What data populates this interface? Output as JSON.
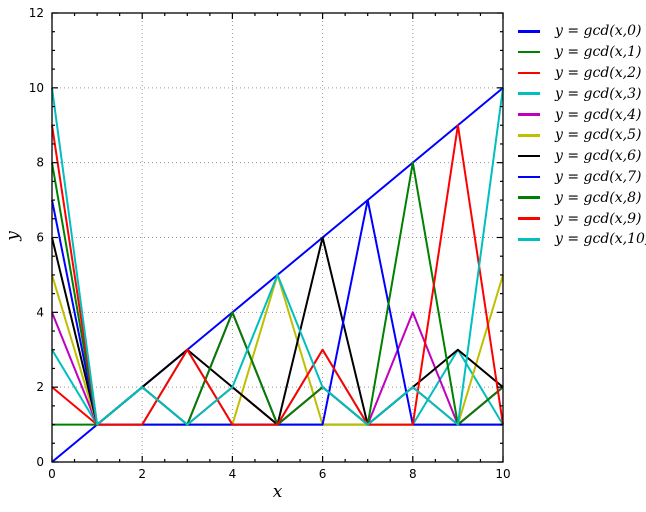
{
  "chart_data": {
    "type": "line",
    "title": "",
    "xlabel": "x",
    "ylabel": "y",
    "xlim": [
      0,
      10
    ],
    "ylim": [
      0,
      12
    ],
    "xticks": [
      0,
      2,
      4,
      6,
      8,
      10
    ],
    "yticks": [
      0,
      2,
      4,
      6,
      8,
      10,
      12
    ],
    "minor_tick_step": 0.5,
    "grid": true,
    "grid_style": "dotted",
    "legend_position": "right",
    "legend_frame": false,
    "colors": {
      "background": "#ffffff",
      "axes": "#000000",
      "grid": "#999999"
    },
    "x": [
      0,
      1,
      2,
      3,
      4,
      5,
      6,
      7,
      8,
      9,
      10
    ],
    "series": [
      {
        "label": "y = gcd(x,0)",
        "color": "#0000ff",
        "values": [
          0,
          1,
          2,
          3,
          4,
          5,
          6,
          7,
          8,
          9,
          10
        ]
      },
      {
        "label": "y = gcd(x,1)",
        "color": "#008000",
        "values": [
          1,
          1,
          1,
          1,
          1,
          1,
          1,
          1,
          1,
          1,
          1
        ]
      },
      {
        "label": "y = gcd(x,2)",
        "color": "#ff0000",
        "values": [
          2,
          1,
          2,
          1,
          2,
          1,
          2,
          1,
          2,
          1,
          2
        ]
      },
      {
        "label": "y = gcd(x,3)",
        "color": "#00bfbf",
        "values": [
          3,
          1,
          1,
          3,
          1,
          1,
          3,
          1,
          1,
          3,
          1
        ]
      },
      {
        "label": "y = gcd(x,4)",
        "color": "#bf00bf",
        "values": [
          4,
          1,
          2,
          1,
          4,
          1,
          2,
          1,
          4,
          1,
          2
        ]
      },
      {
        "label": "y = gcd(x,5)",
        "color": "#bfbf00",
        "values": [
          5,
          1,
          1,
          1,
          1,
          5,
          1,
          1,
          1,
          1,
          5
        ]
      },
      {
        "label": "y = gcd(x,6)",
        "color": "#000000",
        "values": [
          6,
          1,
          2,
          3,
          2,
          1,
          6,
          1,
          2,
          3,
          2
        ]
      },
      {
        "label": "y = gcd(x,7)",
        "color": "#0000ff",
        "values": [
          7,
          1,
          1,
          1,
          1,
          1,
          1,
          7,
          1,
          1,
          1
        ]
      },
      {
        "label": "y = gcd(x,8)",
        "color": "#008000",
        "values": [
          8,
          1,
          2,
          1,
          4,
          1,
          2,
          1,
          8,
          1,
          2
        ]
      },
      {
        "label": "y = gcd(x,9)",
        "color": "#ff0000",
        "values": [
          9,
          1,
          1,
          3,
          1,
          1,
          3,
          1,
          1,
          9,
          1
        ]
      },
      {
        "label": "y = gcd(x,10)",
        "color": "#00bfbf",
        "values": [
          10,
          1,
          2,
          1,
          2,
          5,
          2,
          1,
          2,
          1,
          10
        ]
      }
    ]
  }
}
